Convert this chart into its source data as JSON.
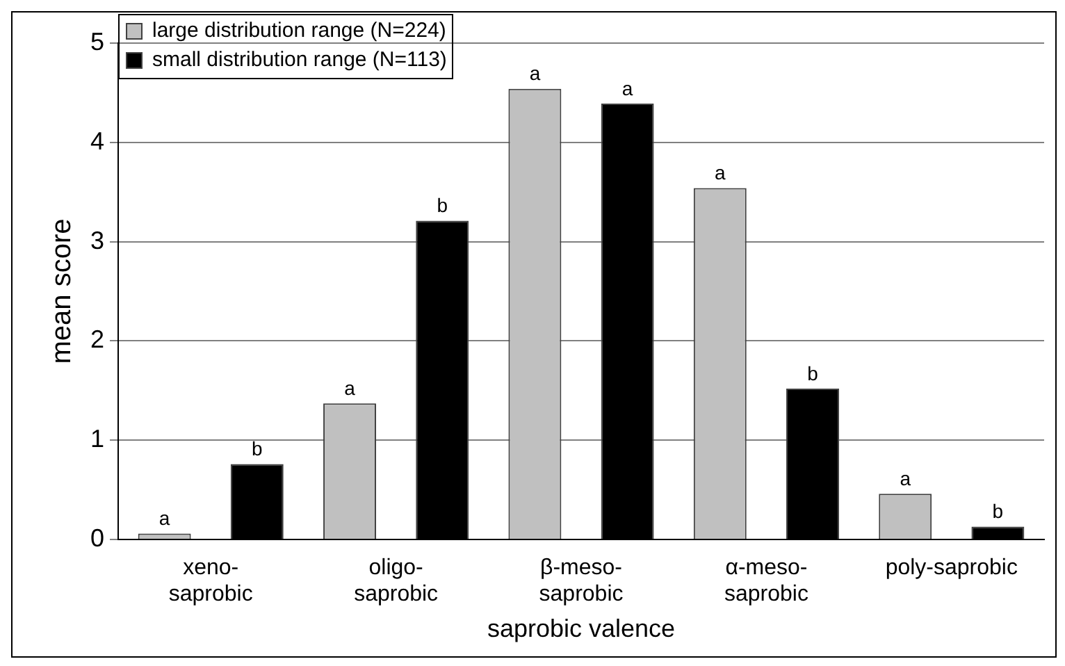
{
  "chart_data": {
    "type": "bar",
    "xlabel": "saprobic valence",
    "ylabel": "mean score",
    "categories": [
      "xeno-\nsaprobic",
      "oligo-\nsaprobic",
      "β-meso-\nsaprobic",
      "α-meso-\nsaprobic",
      "poly-saprobic"
    ],
    "series": [
      {
        "name": "large distribution range (N=224)",
        "color": "#c0c0c0",
        "values": [
          0.06,
          1.37,
          4.54,
          3.54,
          0.46
        ]
      },
      {
        "name": "small distribution range (N=113)",
        "color": "#000000",
        "values": [
          0.76,
          3.21,
          4.39,
          1.52,
          0.13
        ]
      }
    ],
    "ylim": [
      0,
      5
    ],
    "yticks": [
      0,
      1,
      2,
      3,
      4,
      5
    ],
    "grid": "y",
    "legend": "top left",
    "annotations": [
      "a",
      "b",
      "a",
      "b",
      "a",
      "a",
      "a",
      "b",
      "a",
      "b"
    ]
  }
}
